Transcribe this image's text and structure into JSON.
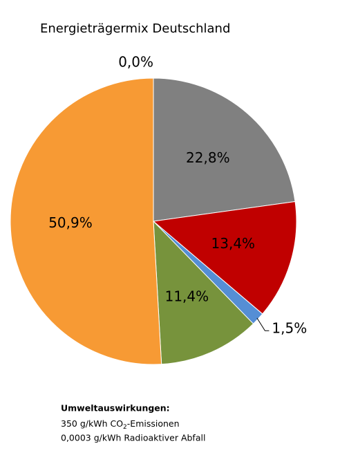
{
  "chart_data": {
    "type": "pie",
    "title": "Energieträgermix Deutschland",
    "values": [
      0.0,
      22.8,
      13.4,
      1.5,
      11.4,
      50.9
    ],
    "value_labels": [
      "0,0%",
      "22,8%",
      "13,4%",
      "1,5%",
      "11,4%",
      "50,9%"
    ],
    "colors": [
      null,
      "#808080",
      "#c00000",
      "#558ed5",
      "#77933c",
      "#f79a34"
    ]
  },
  "notes": {
    "heading": "Umweltauswirkungen:",
    "line1": {
      "before": "350 g/kWh CO",
      "sub": "2",
      "after": "-Emissionen"
    },
    "line2": "0,0003 g/kWh Radioaktiver Abfall"
  }
}
